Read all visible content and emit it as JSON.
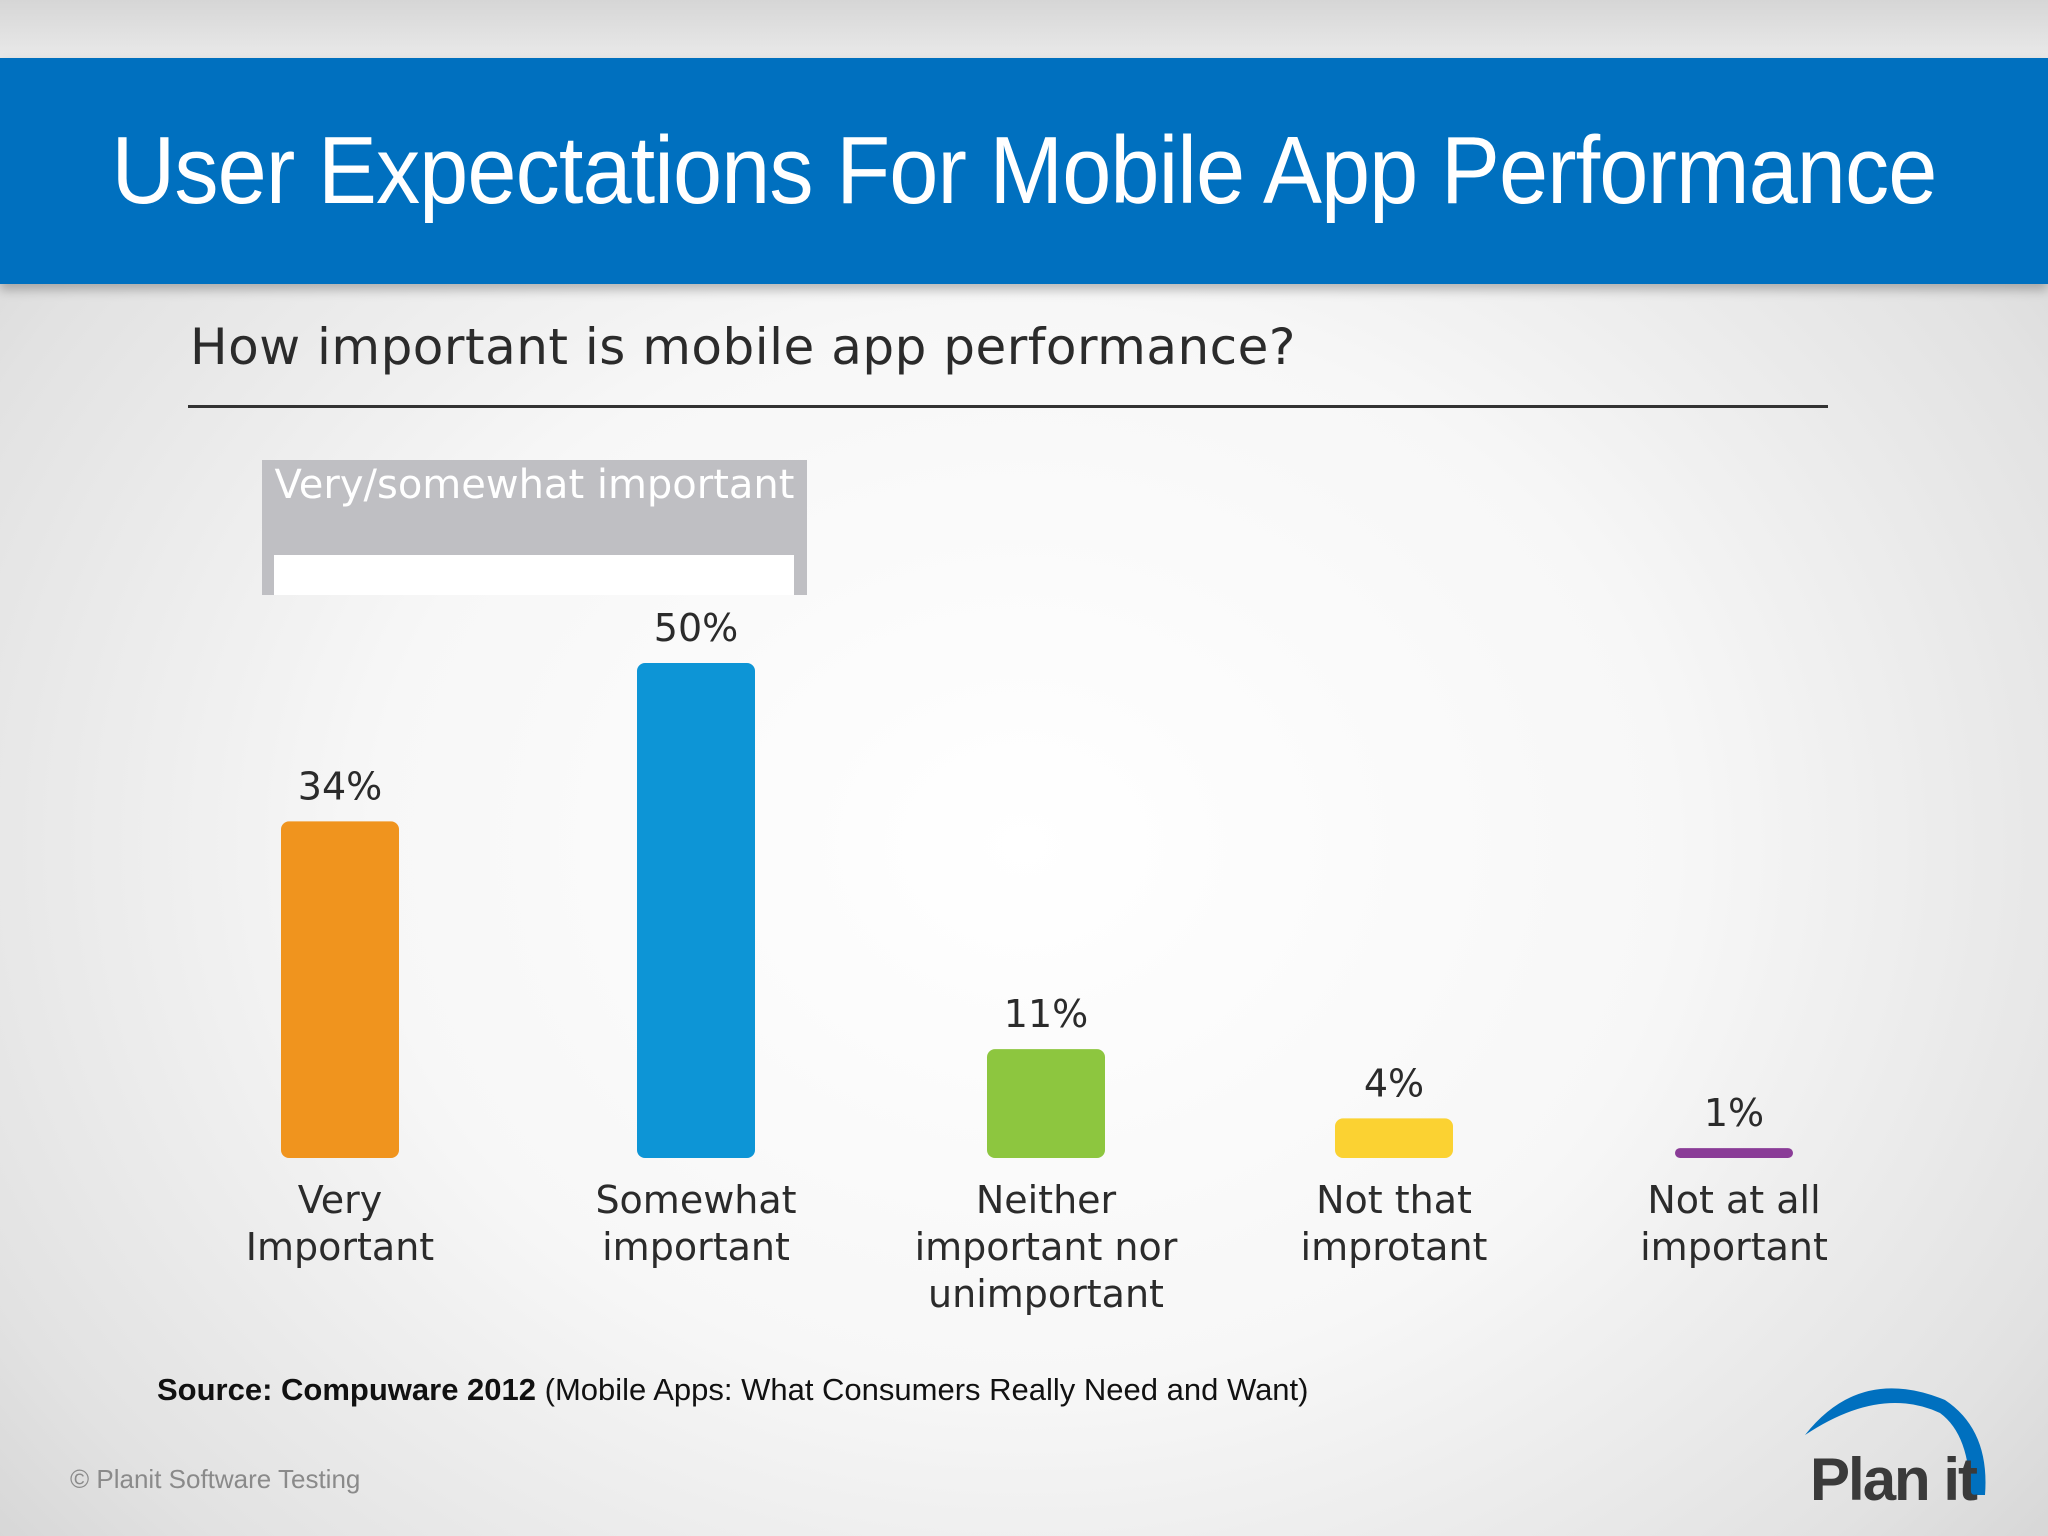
{
  "slide": {
    "title": "User Expectations For Mobile App Performance",
    "source_bold": "Source: Compuware 2012",
    "source_rest": " (Mobile Apps: What Consumers Really Need and Want)",
    "copyright": "© Planit Software Testing",
    "logo_text": "Plan it"
  },
  "colors": {
    "title_bar": "#0070bf",
    "bracket": "#bfbfc3"
  },
  "chart_data": {
    "type": "bar",
    "title": "How important is mobile app performance?",
    "group_label": "Very/somewhat important",
    "categories": [
      "Very Important",
      "Somewhat important",
      "Neither important nor unimportant",
      "Not that improtant",
      "Not at all important"
    ],
    "category_lines": [
      [
        "Very",
        "Important"
      ],
      [
        "Somewhat",
        "important"
      ],
      [
        "Neither",
        "important nor",
        "unimportant"
      ],
      [
        "Not that",
        "improtant"
      ],
      [
        "Not at all",
        "important"
      ]
    ],
    "values": [
      34,
      50,
      11,
      4,
      1
    ],
    "value_labels": [
      "34%",
      "50%",
      "11%",
      "4%",
      "1%"
    ],
    "colors": [
      "#f0941e",
      "#0d95d6",
      "#8dc63f",
      "#fbd232",
      "#8a3c97"
    ],
    "ylim": [
      0,
      50
    ],
    "grid": false,
    "legend": "none"
  }
}
